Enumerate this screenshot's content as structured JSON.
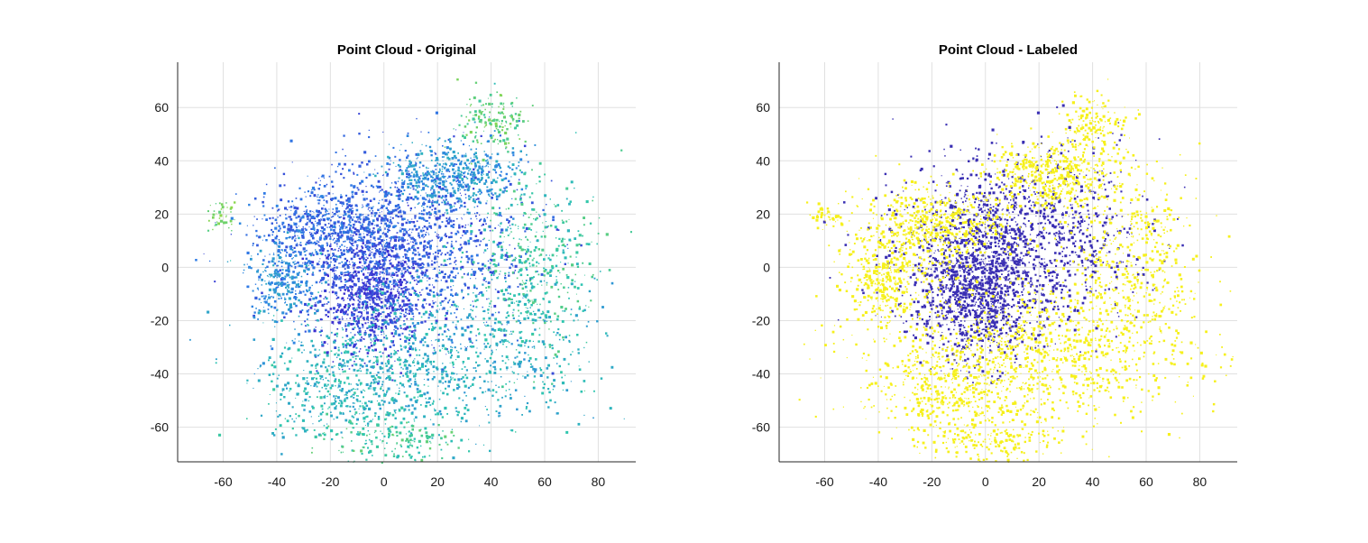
{
  "chart_data": [
    {
      "type": "scatter",
      "title": "Point Cloud - Original",
      "xlabel": "",
      "ylabel": "",
      "xlim": [
        -77,
        94
      ],
      "ylim": [
        -73,
        77
      ],
      "xticks": [
        -60,
        -40,
        -20,
        0,
        20,
        40,
        60,
        80
      ],
      "yticks": [
        -60,
        -40,
        -20,
        0,
        20,
        40,
        60
      ],
      "grid": true,
      "coloring": "height colormap",
      "colors": {
        "low": "#3d2fd0",
        "mid": "#2f7fe6",
        "high": "#2fc6b0",
        "top": "#8ed84a"
      },
      "clusters": [
        {
          "x": -5,
          "y": -10,
          "spread_x": 10,
          "spread_y": 12,
          "n": 900,
          "level": 0.05
        },
        {
          "x": 10,
          "y": 10,
          "spread_x": 22,
          "spread_y": 16,
          "n": 1400,
          "level": 0.2
        },
        {
          "x": -20,
          "y": 15,
          "spread_x": 14,
          "spread_y": 8,
          "n": 600,
          "level": 0.25
        },
        {
          "x": 25,
          "y": 35,
          "spread_x": 12,
          "spread_y": 6,
          "n": 500,
          "level": 0.45
        },
        {
          "x": -38,
          "y": -5,
          "spread_x": 6,
          "spread_y": 8,
          "n": 300,
          "level": 0.4
        },
        {
          "x": 20,
          "y": -30,
          "spread_x": 30,
          "spread_y": 14,
          "n": 900,
          "level": 0.55
        },
        {
          "x": -10,
          "y": -45,
          "spread_x": 18,
          "spread_y": 10,
          "n": 500,
          "level": 0.6
        },
        {
          "x": 55,
          "y": 0,
          "spread_x": 12,
          "spread_y": 18,
          "n": 450,
          "level": 0.7
        },
        {
          "x": 40,
          "y": 55,
          "spread_x": 6,
          "spread_y": 5,
          "n": 150,
          "level": 0.85
        },
        {
          "x": -60,
          "y": 20,
          "spread_x": 3,
          "spread_y": 3,
          "n": 40,
          "level": 0.9
        },
        {
          "x": 5,
          "y": -65,
          "spread_x": 14,
          "spread_y": 4,
          "n": 160,
          "level": 0.75
        }
      ]
    },
    {
      "type": "scatter",
      "title": "Point Cloud - Labeled",
      "xlabel": "",
      "ylabel": "",
      "xlim": [
        -77,
        94
      ],
      "ylim": [
        -73,
        77
      ],
      "xticks": [
        -60,
        -40,
        -20,
        0,
        20,
        40,
        60,
        80
      ],
      "yticks": [
        -60,
        -40,
        -20,
        0,
        20,
        40,
        60
      ],
      "grid": true,
      "coloring": "label",
      "colors": {
        "class_a": "#3a2fb3",
        "class_b": "#f6f01c"
      },
      "clusters": [
        {
          "x": -5,
          "y": -10,
          "spread_x": 10,
          "spread_y": 12,
          "n": 900,
          "label": "class_a"
        },
        {
          "x": 10,
          "y": 10,
          "spread_x": 22,
          "spread_y": 16,
          "n": 1400,
          "label": "class_a"
        },
        {
          "x": -20,
          "y": 15,
          "spread_x": 14,
          "spread_y": 8,
          "n": 600,
          "label": "class_b"
        },
        {
          "x": 25,
          "y": 35,
          "spread_x": 12,
          "spread_y": 6,
          "n": 500,
          "label": "class_b"
        },
        {
          "x": -38,
          "y": -5,
          "spread_x": 6,
          "spread_y": 8,
          "n": 300,
          "label": "class_b"
        },
        {
          "x": 20,
          "y": -30,
          "spread_x": 30,
          "spread_y": 14,
          "n": 900,
          "label": "class_b"
        },
        {
          "x": -10,
          "y": -45,
          "spread_x": 18,
          "spread_y": 10,
          "n": 500,
          "label": "class_b"
        },
        {
          "x": 55,
          "y": 0,
          "spread_x": 12,
          "spread_y": 18,
          "n": 450,
          "label": "class_b"
        },
        {
          "x": 40,
          "y": 55,
          "spread_x": 6,
          "spread_y": 5,
          "n": 150,
          "label": "class_b"
        },
        {
          "x": -60,
          "y": 20,
          "spread_x": 3,
          "spread_y": 3,
          "n": 40,
          "label": "class_b"
        },
        {
          "x": 5,
          "y": -65,
          "spread_x": 14,
          "spread_y": 4,
          "n": 160,
          "label": "class_b"
        }
      ]
    }
  ]
}
